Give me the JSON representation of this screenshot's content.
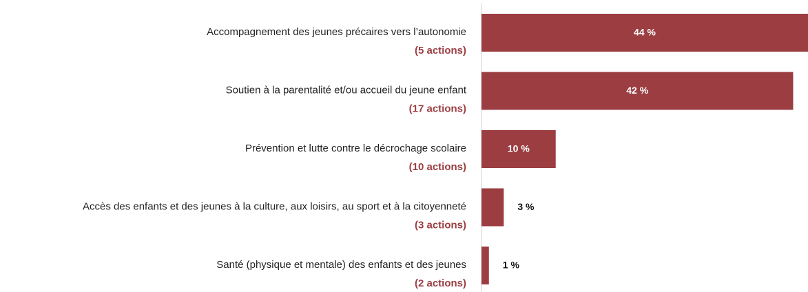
{
  "chart_data": {
    "type": "barh",
    "categories": [
      "Accompagnement des jeunes précaires vers l’autonomie",
      "Soutien à la parentalité et/ou accueil du jeune enfant",
      "Prévention et lutte contre le décrochage scolaire",
      "Accès des enfants et des jeunes à la culture, aux loisirs, au sport et à la citoyenneté",
      "Santé (physique et mentale) des enfants et des jeunes"
    ],
    "sublabels": [
      "(5 actions)",
      "(17 actions)",
      "(10 actions)",
      "(3 actions)",
      "(2 actions)"
    ],
    "values": [
      44,
      42,
      10,
      3,
      1
    ],
    "value_labels": [
      "44 %",
      "42 %",
      "10 %",
      "3 %",
      "1 %"
    ],
    "color": "#9b3d41",
    "xlim": [
      0,
      44
    ]
  }
}
